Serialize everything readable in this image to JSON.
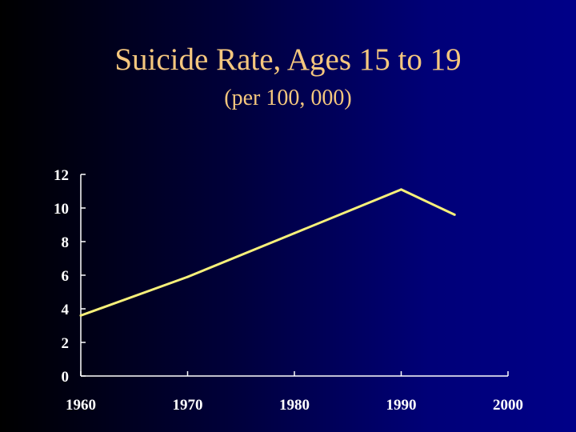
{
  "slide": {
    "title": "Suicide Rate, Ages 15 to 19",
    "subtitle": "(per 100, 000)"
  },
  "colors": {
    "title": "#f5c77e",
    "line": "#f7f07a",
    "axis": "#ffffff",
    "tick_labels": "#ffffff"
  },
  "chart_data": {
    "type": "line",
    "title": "Suicide Rate, Ages 15 to 19",
    "subtitle": "(per 100, 000)",
    "xlabel": "",
    "ylabel": "",
    "xlim": [
      1960,
      2000
    ],
    "ylim": [
      0,
      12
    ],
    "x_ticks": [
      1960,
      1970,
      1980,
      1990,
      2000
    ],
    "y_ticks": [
      0,
      2,
      4,
      6,
      8,
      10,
      12
    ],
    "grid": false,
    "legend": "none",
    "series": [
      {
        "x": [
          1960,
          1970,
          1980,
          1990,
          1995
        ],
        "y": [
          3.6,
          5.9,
          8.5,
          11.1,
          9.6
        ]
      }
    ]
  }
}
